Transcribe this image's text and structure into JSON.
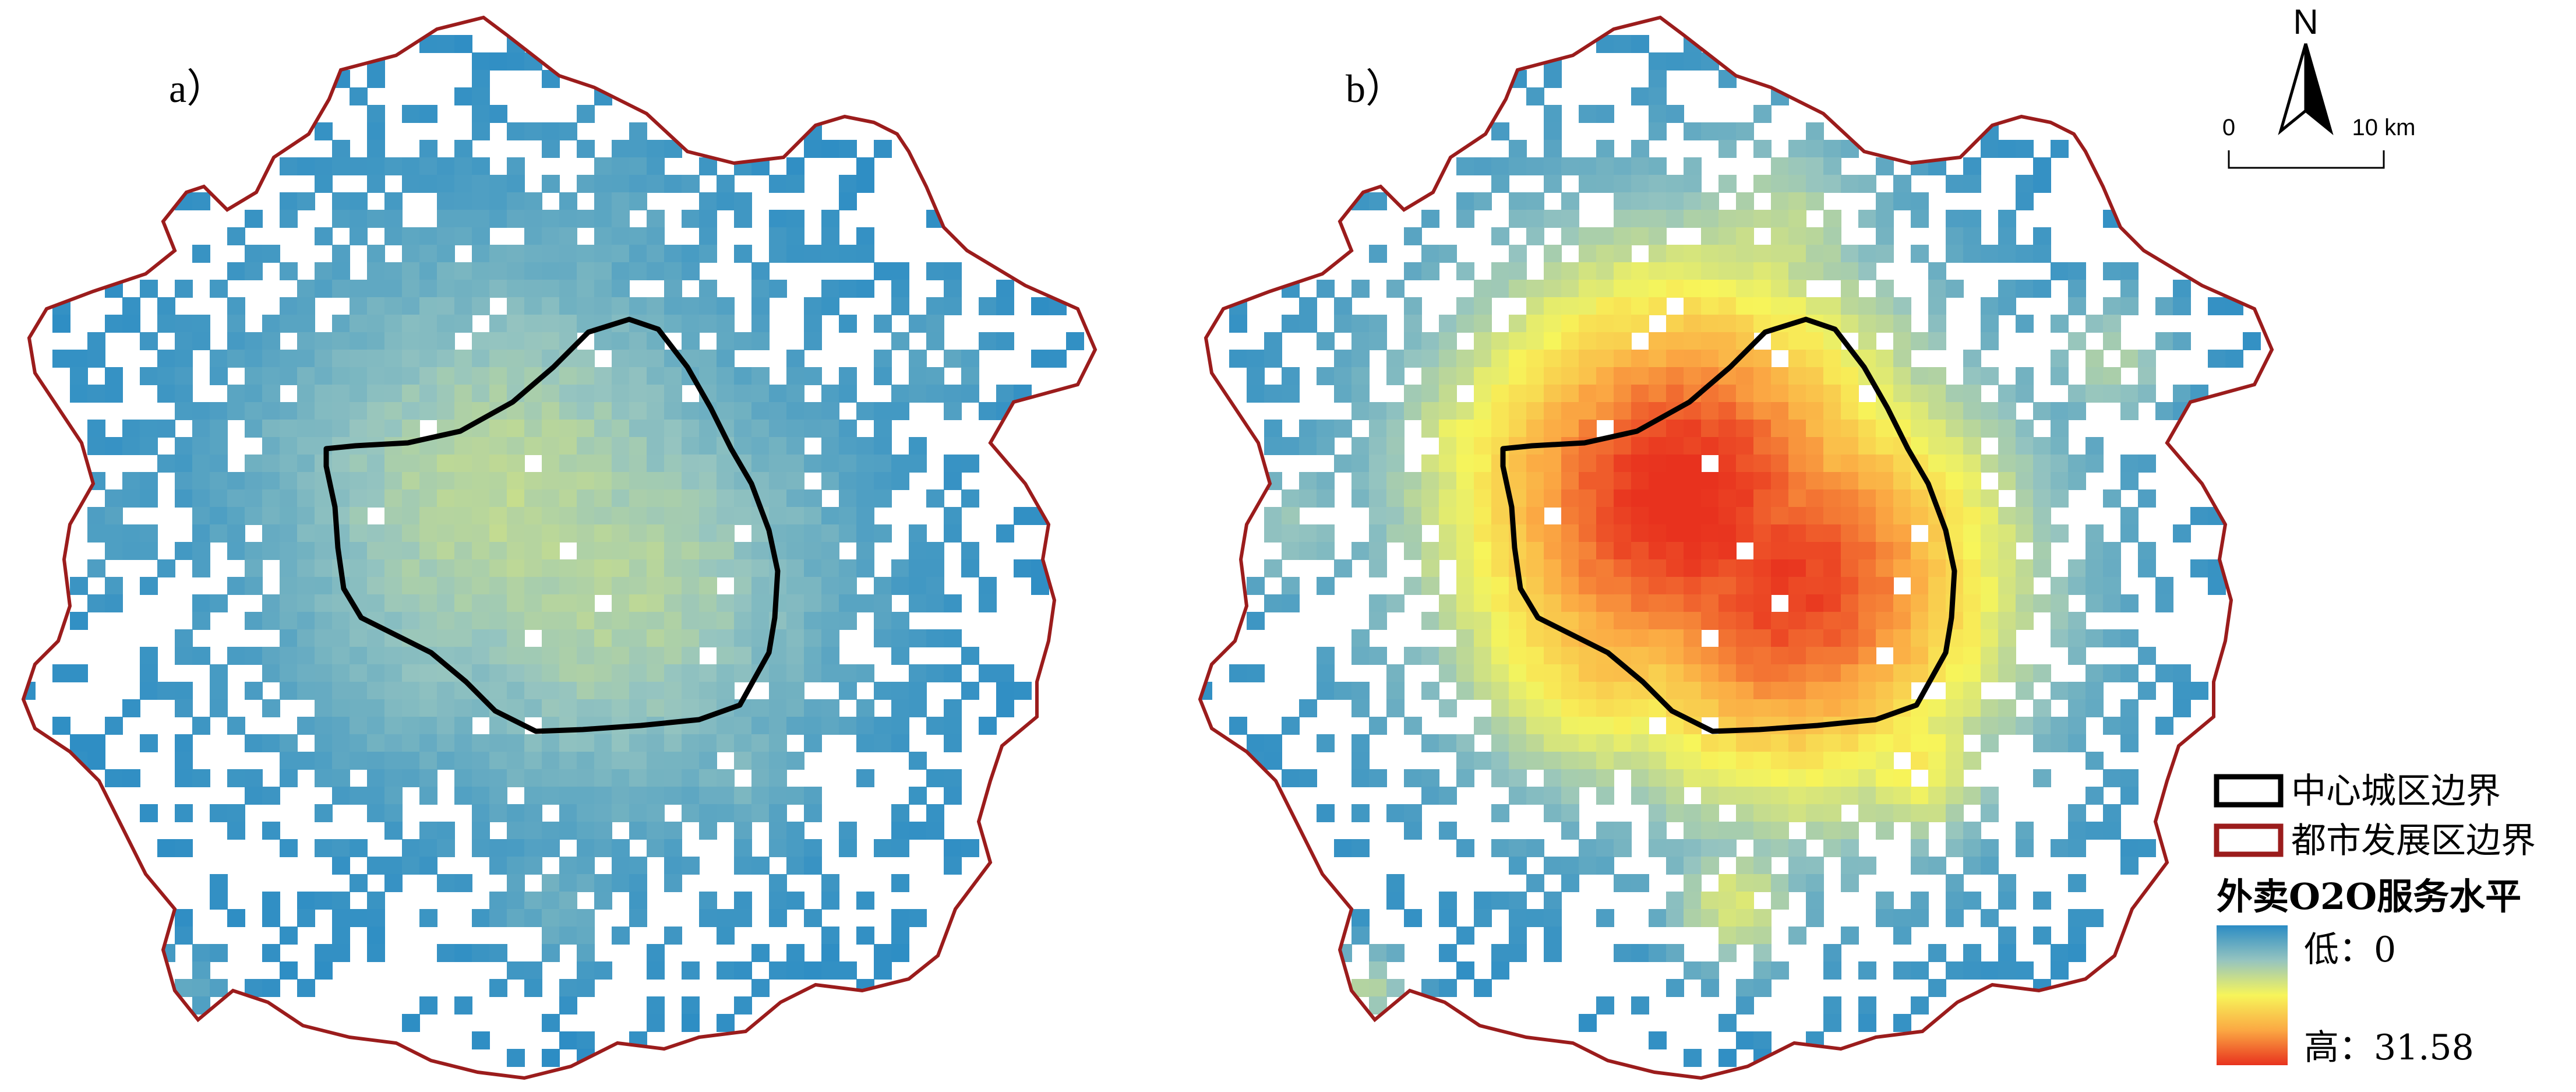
{
  "panels": [
    {
      "label": "a）",
      "intensity": 0.32
    },
    {
      "label": "b）",
      "intensity": 1.0
    }
  ],
  "north": {
    "label": "N"
  },
  "scalebar": {
    "start": "0",
    "end": "10 km"
  },
  "legend": {
    "city_center_boundary": "中心城区边界",
    "metro_dev_boundary": "都市发展区边界",
    "title": "外卖O2O服务水平",
    "low": "低：0",
    "high": "高：31.58",
    "colors": {
      "ramp": [
        "#2b8cc4",
        "#95c4c0",
        "#f7f55a",
        "#fba843",
        "#e8321e"
      ],
      "metro_boundary": "#9b1c1c",
      "city_boundary": "#000000"
    }
  }
}
